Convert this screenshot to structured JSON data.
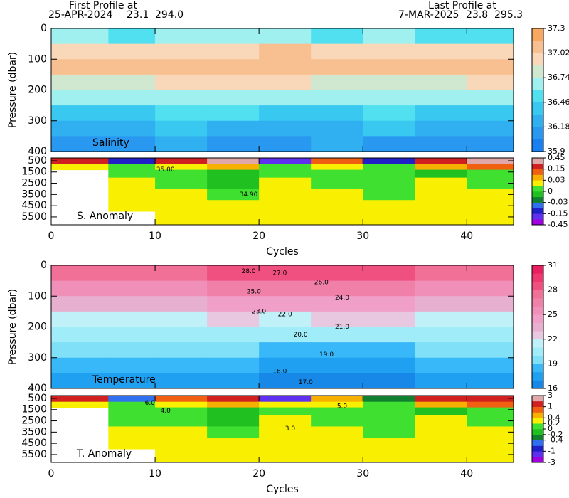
{
  "header": {
    "first_label": "First Profile at",
    "first_date": "25-APR-2024",
    "first_lat": "23.1",
    "first_lon": "294.0",
    "last_label": "Last Profile at",
    "last_date": "7-MAR-2025",
    "last_lat": "23.8",
    "last_lon": "295.3"
  },
  "chart_data": [
    {
      "type": "heatmap",
      "title": "Salinity",
      "ylabel": "Pressure (dbar)",
      "xlim": [
        0,
        44.5
      ],
      "xticks": [
        0,
        10,
        20,
        30,
        40
      ],
      "ylim": [
        0,
        400
      ],
      "yticks": [
        0,
        100,
        200,
        300,
        400
      ],
      "x_edges": [
        0,
        5.5,
        10,
        15,
        20,
        25,
        30,
        35,
        40,
        44.5
      ],
      "y_edges": [
        0,
        50,
        100,
        150,
        200,
        250,
        300,
        350,
        400
      ],
      "z": [
        [
          36.6,
          36.55,
          36.6,
          36.65,
          36.6,
          36.55,
          36.6,
          36.5,
          36.55
        ],
        [
          36.9,
          36.95,
          36.9,
          37.0,
          37.05,
          36.95,
          36.9,
          37.0,
          36.95
        ],
        [
          37.1,
          37.05,
          37.1,
          37.15,
          37.1,
          37.1,
          37.05,
          37.1,
          37.1
        ],
        [
          36.85,
          36.8,
          36.9,
          36.95,
          36.9,
          36.85,
          36.8,
          36.85,
          36.9
        ],
        [
          36.6,
          36.6,
          36.6,
          36.65,
          36.6,
          36.6,
          36.6,
          36.6,
          36.6
        ],
        [
          36.45,
          36.45,
          36.5,
          36.5,
          36.45,
          36.45,
          36.5,
          36.45,
          36.45
        ],
        [
          36.3,
          36.3,
          36.35,
          36.3,
          36.3,
          36.3,
          36.35,
          36.3,
          36.3
        ],
        [
          36.15,
          36.15,
          36.2,
          36.15,
          36.15,
          36.2,
          36.15,
          36.15,
          36.15
        ]
      ],
      "colorbar": {
        "levels": [
          35.9,
          36.04,
          36.18,
          36.32,
          36.46,
          36.6,
          36.74,
          36.88,
          37.02,
          37.16,
          37.3
        ],
        "colors": [
          "#1880f0",
          "#2898f0",
          "#30b0f0",
          "#38c8f0",
          "#50e0f0",
          "#a0f0f0",
          "#d0e8d0",
          "#f8d8b8",
          "#f8c090",
          "#f8a860"
        ],
        "ticks": [
          35.9,
          36.18,
          36.46,
          36.74,
          37.02,
          37.3
        ]
      },
      "annotations": []
    },
    {
      "type": "heatmap",
      "title": "S. Anomaly",
      "xlabel": "Cycles",
      "xlim": [
        0,
        44.5
      ],
      "xticks": [
        0,
        10,
        20,
        30,
        40
      ],
      "ylim": [
        250,
        6200
      ],
      "yticks": [
        500,
        1500,
        2500,
        3500,
        4500,
        5500
      ],
      "x_edges": [
        0,
        5.5,
        10,
        15,
        20,
        25,
        30,
        35,
        40,
        44.5
      ],
      "y_edges": [
        250,
        800,
        1300,
        2000,
        3000,
        4000,
        5000,
        6200
      ],
      "z": [
        [
          0.2,
          -0.1,
          0.15,
          0.3,
          -0.2,
          0.1,
          -0.1,
          0.2,
          0.35
        ],
        [
          0.02,
          0.01,
          0.02,
          0.03,
          0.01,
          0.02,
          0.01,
          0.05,
          0.1
        ],
        [
          null,
          0.005,
          0,
          -0.005,
          0.005,
          0,
          0.005,
          -0.005,
          0.005
        ],
        [
          null,
          0.02,
          0.005,
          -0.005,
          0.02,
          0.01,
          0.005,
          0.02,
          0.005
        ],
        [
          null,
          0.02,
          0.02,
          0.005,
          0.02,
          0.02,
          0.01,
          0.02,
          0.02
        ],
        [
          null,
          0.02,
          0.02,
          0.02,
          0.02,
          0.02,
          0.02,
          0.02,
          0.02
        ],
        [
          null,
          null,
          0.02,
          0.02,
          0.02,
          0.02,
          0.02,
          0.02,
          0.02
        ]
      ],
      "colorbar": {
        "levels": [
          -0.45,
          -0.3,
          -0.15,
          -0.09,
          -0.03,
          -0.015,
          0,
          0.015,
          0.03,
          0.09,
          0.15,
          0.3,
          0.45
        ],
        "colors": [
          "#a000e0",
          "#6030f0",
          "#2020c8",
          "#3070f0",
          "#108030",
          "#20c020",
          "#40e030",
          "#f8f000",
          "#f8b000",
          "#f06010",
          "#d02020",
          "#e0a8a8"
        ],
        "ticks": [
          -0.45,
          -0.15,
          -0.03,
          0,
          0.03,
          0.15,
          0.45
        ]
      },
      "annotations": [
        {
          "text": "35.00",
          "x": 11,
          "y": 1300
        },
        {
          "text": "34.90",
          "x": 19,
          "y": 3500
        }
      ]
    },
    {
      "type": "heatmap",
      "title": "Temperature",
      "ylabel": "Pressure (dbar)",
      "xlim": [
        0,
        44.5
      ],
      "xticks": [
        0,
        10,
        20,
        30,
        40
      ],
      "ylim": [
        0,
        400
      ],
      "yticks": [
        0,
        100,
        200,
        300,
        400
      ],
      "x_edges": [
        0,
        5.5,
        10,
        15,
        20,
        25,
        30,
        35,
        40,
        44.5
      ],
      "y_edges": [
        0,
        50,
        100,
        150,
        200,
        250,
        300,
        350,
        400
      ],
      "z": [
        [
          27.2,
          27.0,
          27.3,
          28.2,
          28.0,
          28.5,
          28.3,
          27.8,
          27.5
        ],
        [
          25.5,
          25.3,
          25.6,
          26.5,
          26.2,
          26.5,
          26.3,
          25.8,
          25.6
        ],
        [
          23.5,
          23.3,
          23.6,
          24.5,
          24.0,
          24.3,
          24.2,
          23.8,
          23.6
        ],
        [
          21.6,
          21.5,
          21.7,
          22.4,
          21.9,
          22.1,
          22.0,
          21.8,
          21.6
        ],
        [
          20.3,
          20.2,
          20.4,
          20.8,
          20.3,
          20.5,
          20.4,
          20.3,
          20.3
        ],
        [
          19.2,
          19.1,
          19.3,
          19.6,
          18.9,
          18.8,
          18.9,
          19.0,
          19.1
        ],
        [
          18.1,
          18.0,
          18.2,
          18.3,
          17.9,
          17.8,
          17.9,
          18.0,
          18.1
        ],
        [
          17.3,
          17.2,
          17.4,
          17.3,
          16.9,
          16.8,
          16.9,
          17.0,
          17.1
        ]
      ],
      "colorbar": {
        "levels": [
          16,
          17,
          18,
          19,
          20,
          21,
          22,
          23,
          24,
          25,
          26,
          27,
          28,
          29,
          30,
          31
        ],
        "colors": [
          "#1888e8",
          "#20a0f0",
          "#38b8f8",
          "#80e0f8",
          "#a0ecf8",
          "#c0f0f8",
          "#e8c8e0",
          "#e8b0d0",
          "#f0a0c8",
          "#f090b8",
          "#f080a8",
          "#f07098",
          "#f05080",
          "#f03870",
          "#e82060"
        ],
        "ticks": [
          16,
          19,
          22,
          25,
          28,
          31
        ]
      },
      "annotations": [
        {
          "text": "28.0",
          "x": 19,
          "y": 20
        },
        {
          "text": "27.0",
          "x": 22,
          "y": 25
        },
        {
          "text": "26.0",
          "x": 26,
          "y": 55
        },
        {
          "text": "25.0",
          "x": 19.5,
          "y": 85
        },
        {
          "text": "24.0",
          "x": 28,
          "y": 105
        },
        {
          "text": "23.0",
          "x": 20,
          "y": 150
        },
        {
          "text": "22.0",
          "x": 22.5,
          "y": 160
        },
        {
          "text": "21.0",
          "x": 28,
          "y": 200
        },
        {
          "text": "20.0",
          "x": 24,
          "y": 225
        },
        {
          "text": "19.0",
          "x": 26.5,
          "y": 290
        },
        {
          "text": "18.0",
          "x": 22,
          "y": 345
        },
        {
          "text": "17.0",
          "x": 24.5,
          "y": 380
        }
      ]
    },
    {
      "type": "heatmap",
      "title": "T. Anomaly",
      "xlabel": "Cycles",
      "xlim": [
        0,
        44.5
      ],
      "xticks": [
        0,
        10,
        20,
        30,
        40
      ],
      "ylim": [
        250,
        6200
      ],
      "yticks": [
        500,
        1500,
        2500,
        3500,
        4500,
        5500
      ],
      "x_edges": [
        0,
        5.5,
        10,
        15,
        20,
        25,
        30,
        35,
        40,
        44.5
      ],
      "y_edges": [
        250,
        800,
        1300,
        2000,
        3000,
        4000,
        5000,
        6200
      ],
      "z": [
        [
          1.5,
          -0.5,
          0.8,
          1.2,
          -1.5,
          0.5,
          -0.3,
          1.0,
          1.5
        ],
        [
          0.3,
          0.1,
          0.3,
          0.5,
          0.2,
          0.3,
          0.1,
          0.6,
          0.8
        ],
        [
          null,
          0.05,
          0,
          -0.05,
          0.1,
          0.05,
          0.1,
          -0.05,
          0.1
        ],
        [
          null,
          0.1,
          0.1,
          -0.05,
          0.3,
          0.1,
          0.1,
          0.3,
          0.1
        ],
        [
          null,
          0.3,
          0.3,
          0.1,
          0.3,
          0.3,
          0.1,
          0.3,
          0.3
        ],
        [
          null,
          0.3,
          0.3,
          0.3,
          0.3,
          0.3,
          0.3,
          0.3,
          0.3
        ],
        [
          null,
          null,
          0.3,
          0.3,
          0.3,
          0.3,
          0.3,
          0.3,
          0.3
        ]
      ],
      "colorbar": {
        "levels": [
          -3,
          -2,
          -1,
          -0.7,
          -0.4,
          -0.2,
          0,
          0.2,
          0.4,
          0.7,
          1,
          2,
          3
        ],
        "colors": [
          "#a000e0",
          "#6030f0",
          "#2020c8",
          "#3070f0",
          "#108030",
          "#20c020",
          "#40e030",
          "#f8f000",
          "#f8b000",
          "#f06010",
          "#d02020",
          "#e0a8a8"
        ],
        "ticks": [
          -3,
          -1,
          -0.4,
          -0.2,
          0,
          0.2,
          0.4,
          1,
          3
        ]
      },
      "annotations": [
        {
          "text": "6.0",
          "x": 9.5,
          "y": 900
        },
        {
          "text": "5.0",
          "x": 28,
          "y": 1200
        },
        {
          "text": "4.0",
          "x": 11,
          "y": 1600
        },
        {
          "text": "3.0",
          "x": 23,
          "y": 3200
        }
      ]
    }
  ]
}
